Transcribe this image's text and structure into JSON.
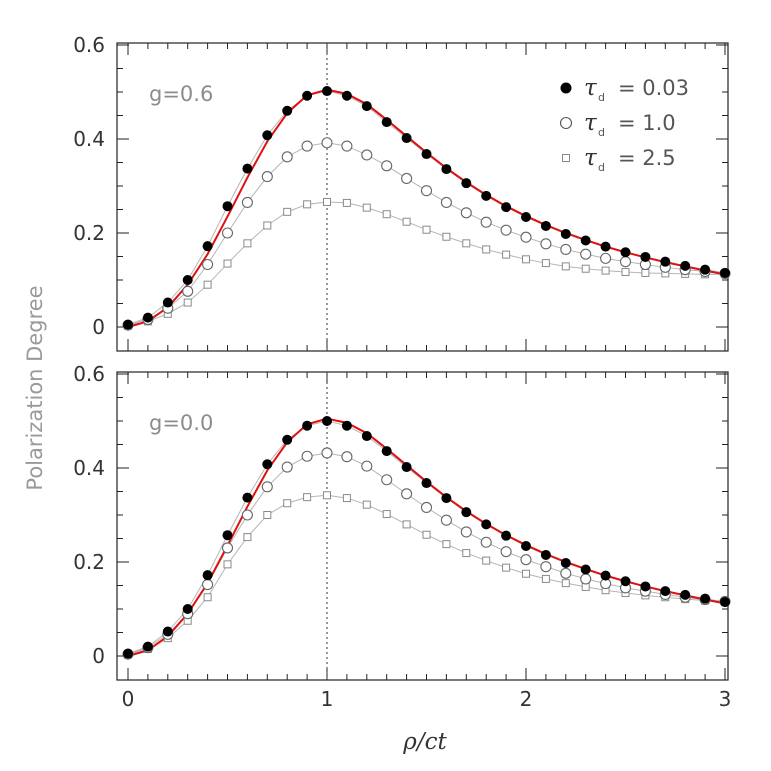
{
  "figure": {
    "ylabel": "Polarization Degree",
    "xlabel": "ρ/ct",
    "legend_symbol": "τ",
    "legend_subscript": "d"
  },
  "chart_data": [
    {
      "type": "scatter",
      "panel_label": "g=0.6",
      "xlim": [
        0,
        3
      ],
      "ylim": [
        0,
        0.6
      ],
      "x_ticks": [
        0,
        1,
        2,
        3
      ],
      "x_tick_labels": [
        "0",
        "1",
        "2",
        "3"
      ],
      "y_ticks": [
        0,
        0.2,
        0.4,
        0.6
      ],
      "y_tick_labels": [
        "0",
        "0.2",
        "0.4",
        "0.6"
      ],
      "reference_line_x": 1,
      "legend_position": "top-right",
      "x": [
        0,
        0.1,
        0.2,
        0.3,
        0.4,
        0.5,
        0.6,
        0.7,
        0.8,
        0.9,
        1.0,
        1.1,
        1.2,
        1.3,
        1.4,
        1.5,
        1.6,
        1.7,
        1.8,
        1.9,
        2.0,
        2.1,
        2.2,
        2.3,
        2.4,
        2.5,
        2.6,
        2.7,
        2.8,
        2.9,
        3.0
      ],
      "series": [
        {
          "name": "τd = 0.03",
          "legend_value": "= 0.03",
          "marker": "filled-circle",
          "color": "#000000",
          "values": [
            0.005,
            0.02,
            0.052,
            0.1,
            0.172,
            0.257,
            0.337,
            0.408,
            0.46,
            0.492,
            0.502,
            0.492,
            0.47,
            0.436,
            0.402,
            0.368,
            0.336,
            0.306,
            0.279,
            0.255,
            0.234,
            0.215,
            0.198,
            0.184,
            0.171,
            0.159,
            0.149,
            0.139,
            0.13,
            0.122,
            0.115
          ]
        },
        {
          "name": "τd = 1.0",
          "legend_value": "= 1.0",
          "marker": "open-circle",
          "color": "#666666",
          "values": [
            0.004,
            0.016,
            0.04,
            0.076,
            0.133,
            0.2,
            0.265,
            0.32,
            0.362,
            0.385,
            0.392,
            0.385,
            0.366,
            0.343,
            0.316,
            0.29,
            0.265,
            0.243,
            0.223,
            0.206,
            0.191,
            0.177,
            0.165,
            0.155,
            0.146,
            0.139,
            0.133,
            0.127,
            0.122,
            0.118,
            0.114
          ]
        },
        {
          "name": "τd = 2.5",
          "legend_value": "= 2.5",
          "marker": "open-square",
          "color": "#8a8a8a",
          "values": [
            0.003,
            0.012,
            0.028,
            0.052,
            0.09,
            0.135,
            0.178,
            0.216,
            0.245,
            0.261,
            0.266,
            0.264,
            0.254,
            0.24,
            0.224,
            0.207,
            0.192,
            0.178,
            0.165,
            0.154,
            0.144,
            0.136,
            0.129,
            0.124,
            0.12,
            0.117,
            0.115,
            0.114,
            0.113,
            0.112,
            0.112
          ]
        }
      ],
      "red_curve": {
        "x": [
          0,
          0.1,
          0.2,
          0.3,
          0.4,
          0.5,
          0.6,
          0.7,
          0.8,
          0.9,
          1.0,
          1.1,
          1.2,
          1.3,
          1.4,
          1.5,
          1.6,
          1.7,
          1.8,
          1.9,
          2.0,
          2.1,
          2.2,
          2.3,
          2.4,
          2.5,
          2.6,
          2.7,
          2.8,
          2.9,
          3.0
        ],
        "values": [
          0.0,
          0.012,
          0.042,
          0.09,
          0.155,
          0.235,
          0.318,
          0.395,
          0.455,
          0.493,
          0.505,
          0.496,
          0.474,
          0.441,
          0.406,
          0.371,
          0.338,
          0.308,
          0.281,
          0.257,
          0.236,
          0.217,
          0.2,
          0.185,
          0.171,
          0.159,
          0.148,
          0.138,
          0.129,
          0.12,
          0.112
        ],
        "color": "#e01010"
      }
    },
    {
      "type": "scatter",
      "panel_label": "g=0.0",
      "xlim": [
        0,
        3
      ],
      "ylim": [
        0,
        0.6
      ],
      "x_ticks": [
        0,
        1,
        2,
        3
      ],
      "x_tick_labels": [
        "0",
        "1",
        "2",
        "3"
      ],
      "y_ticks": [
        0,
        0.2,
        0.4,
        0.6
      ],
      "y_tick_labels": [
        "0",
        "0.2",
        "0.4",
        "0.6"
      ],
      "reference_line_x": 1,
      "x": [
        0,
        0.1,
        0.2,
        0.3,
        0.4,
        0.5,
        0.6,
        0.7,
        0.8,
        0.9,
        1.0,
        1.1,
        1.2,
        1.3,
        1.4,
        1.5,
        1.6,
        1.7,
        1.8,
        1.9,
        2.0,
        2.1,
        2.2,
        2.3,
        2.4,
        2.5,
        2.6,
        2.7,
        2.8,
        2.9,
        3.0
      ],
      "series": [
        {
          "name": "τd = 0.03",
          "marker": "filled-circle",
          "color": "#000000",
          "values": [
            0.005,
            0.02,
            0.052,
            0.1,
            0.172,
            0.257,
            0.337,
            0.408,
            0.46,
            0.49,
            0.5,
            0.49,
            0.468,
            0.436,
            0.402,
            0.368,
            0.336,
            0.306,
            0.28,
            0.256,
            0.234,
            0.215,
            0.198,
            0.184,
            0.171,
            0.159,
            0.148,
            0.138,
            0.13,
            0.122,
            0.115
          ]
        },
        {
          "name": "τd = 1.0",
          "marker": "open-circle",
          "color": "#666666",
          "values": [
            0.004,
            0.018,
            0.046,
            0.09,
            0.152,
            0.23,
            0.3,
            0.36,
            0.402,
            0.425,
            0.432,
            0.424,
            0.404,
            0.375,
            0.345,
            0.316,
            0.289,
            0.264,
            0.242,
            0.222,
            0.205,
            0.19,
            0.176,
            0.164,
            0.154,
            0.145,
            0.138,
            0.131,
            0.125,
            0.12,
            0.116
          ]
        },
        {
          "name": "τd = 2.5",
          "marker": "open-square",
          "color": "#8a8a8a",
          "values": [
            0.003,
            0.015,
            0.038,
            0.075,
            0.125,
            0.195,
            0.253,
            0.3,
            0.325,
            0.338,
            0.342,
            0.336,
            0.322,
            0.302,
            0.28,
            0.258,
            0.238,
            0.219,
            0.203,
            0.188,
            0.175,
            0.164,
            0.155,
            0.147,
            0.14,
            0.134,
            0.129,
            0.125,
            0.121,
            0.118,
            0.115
          ]
        }
      ],
      "red_curve": {
        "x": [
          0,
          0.1,
          0.2,
          0.3,
          0.4,
          0.5,
          0.6,
          0.7,
          0.8,
          0.9,
          1.0,
          1.1,
          1.2,
          1.3,
          1.4,
          1.5,
          1.6,
          1.7,
          1.8,
          1.9,
          2.0,
          2.1,
          2.2,
          2.3,
          2.4,
          2.5,
          2.6,
          2.7,
          2.8,
          2.9,
          3.0
        ],
        "values": [
          0.0,
          0.012,
          0.042,
          0.09,
          0.155,
          0.235,
          0.318,
          0.395,
          0.455,
          0.493,
          0.505,
          0.496,
          0.474,
          0.441,
          0.406,
          0.371,
          0.338,
          0.308,
          0.281,
          0.257,
          0.236,
          0.217,
          0.2,
          0.185,
          0.171,
          0.159,
          0.148,
          0.138,
          0.129,
          0.12,
          0.112
        ],
        "color": "#e01010"
      }
    }
  ]
}
